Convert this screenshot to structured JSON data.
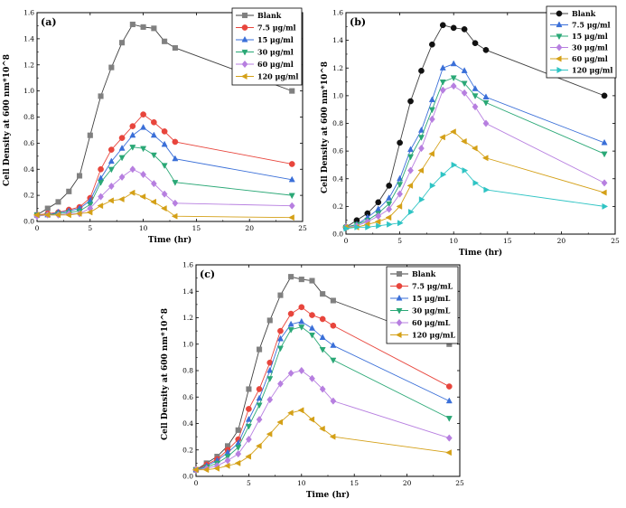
{
  "chart_data": [
    {
      "panel": "(a)",
      "type": "line",
      "xlabel": "Time (hr)",
      "ylabel": "Cell Density at 600 nm*10^8",
      "xlim": [
        0,
        25
      ],
      "ylim": [
        0,
        1.6
      ],
      "xticks": [
        0,
        5,
        10,
        15,
        20,
        25
      ],
      "yticks": [
        0.0,
        0.2,
        0.4,
        0.6,
        0.8,
        1.0,
        1.2,
        1.4,
        1.6
      ],
      "legend_position": "top-right",
      "x": [
        0,
        1,
        2,
        3,
        4,
        5,
        6,
        7,
        8,
        9,
        10,
        11,
        12,
        13,
        24
      ],
      "series": [
        {
          "name": "Blank",
          "color": "#808080",
          "line": "#404040",
          "marker": "square",
          "values": [
            0.05,
            0.1,
            0.15,
            0.23,
            0.35,
            0.66,
            0.96,
            1.18,
            1.37,
            1.51,
            1.49,
            1.48,
            1.38,
            1.33,
            1.0
          ]
        },
        {
          "name": "7.5 μg/ml",
          "color": "#e8453c",
          "marker": "circle",
          "values": [
            0.05,
            0.06,
            0.07,
            0.09,
            0.11,
            0.18,
            0.4,
            0.55,
            0.64,
            0.73,
            0.82,
            0.76,
            0.69,
            0.61,
            0.44
          ]
        },
        {
          "name": "15 μg/ml",
          "color": "#3a6fd8",
          "marker": "triangle-up",
          "values": [
            0.05,
            0.05,
            0.07,
            0.08,
            0.1,
            0.16,
            0.33,
            0.46,
            0.56,
            0.66,
            0.72,
            0.66,
            0.59,
            0.48,
            0.32
          ]
        },
        {
          "name": "30 μg/ml",
          "color": "#2aa876",
          "marker": "triangle-down",
          "values": [
            0.05,
            0.05,
            0.06,
            0.07,
            0.08,
            0.13,
            0.3,
            0.4,
            0.49,
            0.57,
            0.56,
            0.51,
            0.43,
            0.3,
            0.2
          ]
        },
        {
          "name": "60 μg/ml",
          "color": "#b77fe0",
          "marker": "diamond",
          "values": [
            0.04,
            0.05,
            0.05,
            0.06,
            0.06,
            0.1,
            0.19,
            0.27,
            0.34,
            0.4,
            0.36,
            0.29,
            0.21,
            0.14,
            0.12
          ]
        },
        {
          "name": "120 μg/ml",
          "color": "#d4a017",
          "marker": "triangle-left",
          "values": [
            0.05,
            0.05,
            0.05,
            0.05,
            0.06,
            0.07,
            0.12,
            0.16,
            0.17,
            0.22,
            0.19,
            0.15,
            0.1,
            0.04,
            0.03
          ]
        }
      ]
    },
    {
      "panel": "(b)",
      "type": "line",
      "xlabel": "Time (hr)",
      "ylabel": "Cell Density at 600 nm*10^8",
      "xlim": [
        0,
        25
      ],
      "ylim": [
        0,
        1.6
      ],
      "xticks": [
        0,
        5,
        10,
        15,
        20,
        25
      ],
      "yticks": [
        0.0,
        0.2,
        0.4,
        0.6,
        0.8,
        1.0,
        1.2,
        1.4,
        1.6
      ],
      "legend_position": "top-right",
      "x": [
        0,
        1,
        2,
        3,
        4,
        5,
        6,
        7,
        8,
        9,
        10,
        11,
        12,
        13,
        24
      ],
      "series": [
        {
          "name": "Blank",
          "color": "#111111",
          "line": "#404040",
          "marker": "circle",
          "values": [
            0.05,
            0.1,
            0.15,
            0.23,
            0.35,
            0.66,
            0.96,
            1.18,
            1.37,
            1.51,
            1.49,
            1.48,
            1.38,
            1.33,
            1.0
          ]
        },
        {
          "name": "7.5 μg/ml",
          "color": "#3a6fd8",
          "marker": "triangle-up",
          "values": [
            0.05,
            0.07,
            0.12,
            0.18,
            0.26,
            0.4,
            0.61,
            0.75,
            0.97,
            1.2,
            1.23,
            1.18,
            1.05,
            0.99,
            0.66
          ]
        },
        {
          "name": "15 μg/ml",
          "color": "#2aa876",
          "marker": "triangle-down",
          "values": [
            0.05,
            0.07,
            0.1,
            0.15,
            0.22,
            0.36,
            0.56,
            0.7,
            0.9,
            1.1,
            1.13,
            1.09,
            1.0,
            0.95,
            0.58
          ]
        },
        {
          "name": "30 μg/ml",
          "color": "#b77fe0",
          "marker": "diamond",
          "values": [
            0.05,
            0.06,
            0.09,
            0.13,
            0.18,
            0.29,
            0.46,
            0.62,
            0.83,
            1.04,
            1.07,
            1.02,
            0.92,
            0.8,
            0.37
          ]
        },
        {
          "name": "60 μg/ml",
          "color": "#d4a017",
          "marker": "triangle-left",
          "values": [
            0.05,
            0.05,
            0.07,
            0.09,
            0.12,
            0.2,
            0.35,
            0.46,
            0.58,
            0.7,
            0.74,
            0.67,
            0.62,
            0.55,
            0.3
          ]
        },
        {
          "name": "120 μg/ml",
          "color": "#2fc4c4",
          "marker": "triangle-right",
          "values": [
            0.04,
            0.05,
            0.05,
            0.06,
            0.07,
            0.08,
            0.16,
            0.25,
            0.35,
            0.43,
            0.5,
            0.46,
            0.37,
            0.32,
            0.2
          ]
        }
      ]
    },
    {
      "panel": "(c)",
      "type": "line",
      "xlabel": "Time (hr)",
      "ylabel": "Cell Density at 600 nm*10^8",
      "xlim": [
        0,
        25
      ],
      "ylim": [
        0,
        1.6
      ],
      "xticks": [
        0,
        5,
        10,
        15,
        20,
        25
      ],
      "yticks": [
        0.0,
        0.2,
        0.4,
        0.6,
        0.8,
        1.0,
        1.2,
        1.4,
        1.6
      ],
      "legend_position": "top-right",
      "x": [
        0,
        1,
        2,
        3,
        4,
        5,
        6,
        7,
        8,
        9,
        10,
        11,
        12,
        13,
        24
      ],
      "series": [
        {
          "name": "Blank",
          "color": "#808080",
          "line": "#404040",
          "marker": "square",
          "values": [
            0.05,
            0.1,
            0.15,
            0.23,
            0.35,
            0.66,
            0.96,
            1.18,
            1.37,
            1.51,
            1.49,
            1.48,
            1.38,
            1.33,
            1.0
          ]
        },
        {
          "name": "7.5 μg/mL",
          "color": "#e8453c",
          "marker": "circle",
          "values": [
            0.05,
            0.09,
            0.13,
            0.2,
            0.28,
            0.51,
            0.66,
            0.86,
            1.1,
            1.23,
            1.28,
            1.22,
            1.19,
            1.14,
            0.68
          ]
        },
        {
          "name": "15 μg/mL",
          "color": "#3a6fd8",
          "marker": "triangle-up",
          "values": [
            0.05,
            0.08,
            0.12,
            0.18,
            0.25,
            0.43,
            0.59,
            0.8,
            1.04,
            1.15,
            1.17,
            1.12,
            1.05,
            0.99,
            0.57
          ]
        },
        {
          "name": "30 μg/mL",
          "color": "#2aa876",
          "marker": "triangle-down",
          "values": [
            0.05,
            0.07,
            0.1,
            0.15,
            0.22,
            0.38,
            0.54,
            0.74,
            0.97,
            1.11,
            1.13,
            1.07,
            0.96,
            0.88,
            0.44
          ]
        },
        {
          "name": "60 μg/mL",
          "color": "#b77fe0",
          "marker": "diamond",
          "values": [
            0.05,
            0.06,
            0.08,
            0.12,
            0.17,
            0.28,
            0.43,
            0.58,
            0.7,
            0.78,
            0.8,
            0.74,
            0.66,
            0.57,
            0.29
          ]
        },
        {
          "name": "120 μg/mL",
          "color": "#d4a017",
          "marker": "triangle-left",
          "values": [
            0.05,
            0.05,
            0.06,
            0.08,
            0.1,
            0.15,
            0.23,
            0.32,
            0.41,
            0.48,
            0.5,
            0.43,
            0.36,
            0.3,
            0.18
          ]
        }
      ]
    }
  ]
}
